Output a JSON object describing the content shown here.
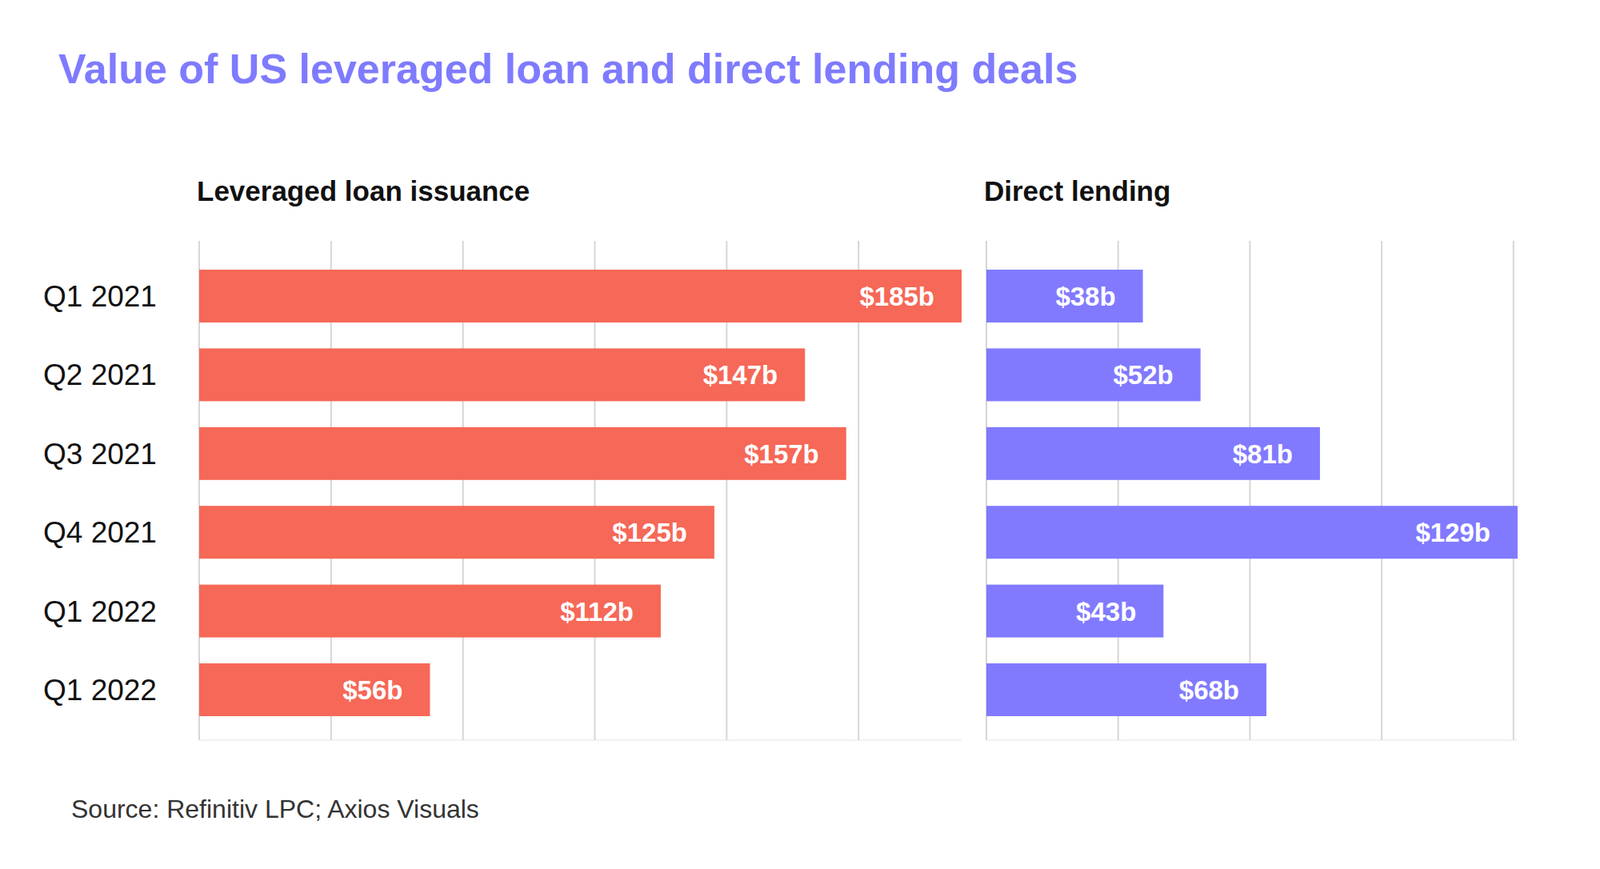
{
  "title": "Value of US leveraged loan and direct lending deals",
  "source": "Source: Refinitiv LPC; Axios Visuals",
  "chart_data": [
    {
      "type": "bar",
      "orientation": "horizontal",
      "title": "Leveraged loan issuance",
      "categories": [
        "Q1 2021",
        "Q2 2021",
        "Q3 2021",
        "Q4 2021",
        "Q1 2022",
        "Q1 2022"
      ],
      "values": [
        185,
        147,
        157,
        125,
        112,
        56
      ],
      "value_labels": [
        "$185b",
        "$147b",
        "$157b",
        "$125b",
        "$112b",
        "$56b"
      ],
      "color": "#f66857",
      "xlim": [
        0,
        185
      ],
      "xticks": [
        0,
        32,
        64,
        96,
        128,
        160
      ],
      "grid": true,
      "data_labels": true,
      "tick_labels": "y"
    },
    {
      "type": "bar",
      "orientation": "horizontal",
      "title": "Direct lending",
      "values": [
        38,
        52,
        81,
        129,
        43,
        68
      ],
      "value_labels": [
        "$38b",
        "$52b",
        "$81b",
        "$129b",
        "$43b",
        "$68b"
      ],
      "color": "#817aff",
      "xlim": [
        0,
        129
      ],
      "xticks": [
        0,
        32,
        64,
        96,
        128
      ],
      "grid": true,
      "data_labels": true,
      "tick_labels": false
    }
  ]
}
